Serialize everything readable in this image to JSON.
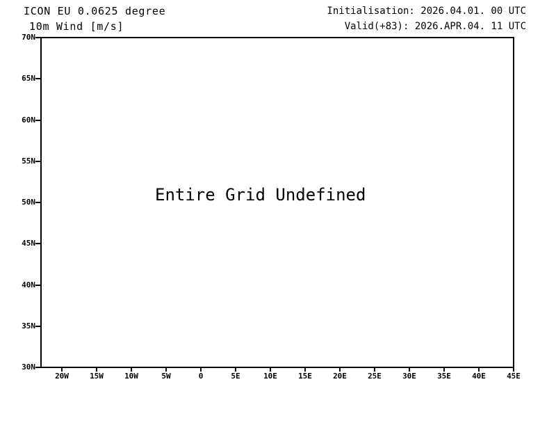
{
  "colors": {
    "foreground": "#000000",
    "background": "#ffffff"
  },
  "header": {
    "left_line1": "ICON EU 0.0625 degree",
    "left_line2": "10m Wind [m/s]",
    "right_line1": "Initialisation: 2026.04.01. 00 UTC",
    "right_line2": "Valid(+83): 2026.APR.04. 11 UTC"
  },
  "chart_data": {
    "type": "map",
    "title": "ICON EU 0.0625 degree",
    "subtitle": "10m Wind [m/s]",
    "initialisation_text": "Initialisation: 2026.04.01. 00 UTC",
    "valid_text": "Valid(+83): 2026.APR.04. 11 UTC",
    "x_tick_labels": [
      "20W",
      "15W",
      "10W",
      "5W",
      "0",
      "5E",
      "10E",
      "15E",
      "20E",
      "25E",
      "30E",
      "35E",
      "40E",
      "45E"
    ],
    "y_tick_labels": [
      "70N",
      "65N",
      "60N",
      "55N",
      "50N",
      "45N",
      "40N",
      "35N",
      "30N"
    ],
    "series": [],
    "annotation": "Entire Grid Undefined",
    "grid": false,
    "legend": false,
    "frame_color": "#000000",
    "background_color": "#ffffff"
  }
}
